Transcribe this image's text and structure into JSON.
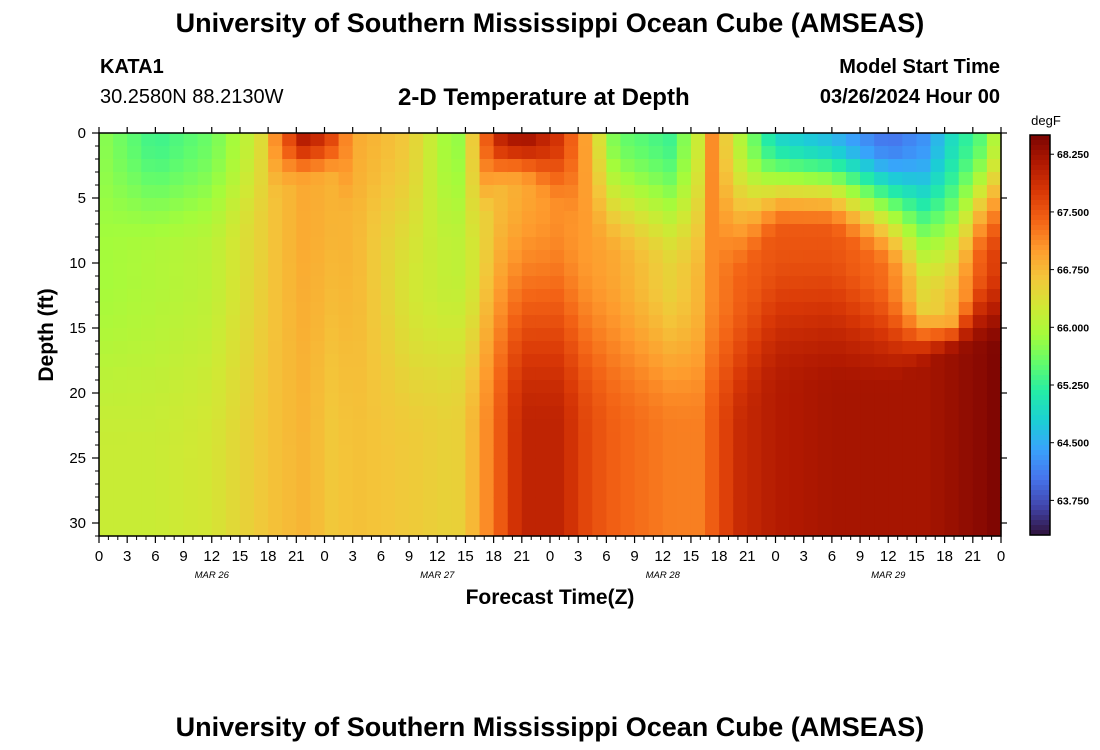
{
  "header": {
    "title": "University of Southern Mississippi Ocean Cube (AMSEAS)",
    "station_id": "KATA1",
    "coordinates": "30.2580N  88.2130W",
    "plot_title": "2-D Temperature at Depth",
    "model_label": "Model Start Time",
    "model_time": "03/26/2024 Hour 00"
  },
  "footer": {
    "title": "University of Southern Mississippi Ocean Cube (AMSEAS)"
  },
  "chart_data": {
    "type": "heatmap",
    "xlabel": "Forecast Time(Z)",
    "ylabel": "Depth (ft)",
    "x_hours": [
      0,
      96
    ],
    "x_step_hours": 1.5,
    "xtick_labels": [
      "0",
      "3",
      "6",
      "9",
      "12",
      "15",
      "18",
      "21",
      "0",
      "3",
      "6",
      "9",
      "12",
      "15",
      "18",
      "21",
      "0",
      "3",
      "6",
      "9",
      "12",
      "15",
      "18",
      "21",
      "0",
      "3",
      "6",
      "9",
      "12",
      "15",
      "18",
      "21",
      "0"
    ],
    "date_labels": [
      "MAR 26",
      "MAR 27",
      "MAR 28",
      "MAR 29"
    ],
    "ylim": [
      0,
      31
    ],
    "ytick_labels": [
      "0",
      "5",
      "10",
      "15",
      "20",
      "25",
      "30"
    ],
    "depth_step_ft": 1,
    "colorbar": {
      "unit": "degF",
      "range": [
        63.3,
        68.5
      ],
      "tick_labels": [
        "68.250",
        "67.500",
        "66.750",
        "66.000",
        "65.250",
        "64.500",
        "63.750"
      ],
      "colors": [
        "#30123b",
        "#4145ab",
        "#4675ed",
        "#39a2fc",
        "#1bcfd4",
        "#24eca6",
        "#61fc6c",
        "#a4fc3b",
        "#d1e834",
        "#f3c63a",
        "#fe9b2d",
        "#f36315",
        "#d93806",
        "#b11901",
        "#7a0402"
      ]
    },
    "profiles": [
      {
        "hour": 0,
        "top": 65.8,
        "mid": 65.9,
        "bot": 66.2,
        "z1": 10,
        "z2": 25
      },
      {
        "hour": 6,
        "top": 65.3,
        "mid": 66.0,
        "bot": 66.2,
        "z1": 10,
        "z2": 25
      },
      {
        "hour": 12,
        "top": 65.6,
        "mid": 66.1,
        "bot": 66.3,
        "z1": 10,
        "z2": 25
      },
      {
        "hour": 17,
        "top": 66.3,
        "mid": 66.5,
        "bot": 66.6,
        "z1": 8,
        "z2": 25
      },
      {
        "hour": 19,
        "top": 67.2,
        "mid": 66.7,
        "bot": 66.7,
        "z1": 5,
        "z2": 25
      },
      {
        "hour": 22,
        "top": 68.2,
        "mid": 66.9,
        "bot": 66.8,
        "z1": 4,
        "z2": 25
      },
      {
        "hour": 25,
        "top": 67.6,
        "mid": 66.8,
        "bot": 66.6,
        "z1": 4,
        "z2": 25
      },
      {
        "hour": 27,
        "top": 66.9,
        "mid": 66.8,
        "bot": 66.7,
        "z1": 8,
        "z2": 25
      },
      {
        "hour": 33,
        "top": 66.6,
        "mid": 66.3,
        "bot": 66.6,
        "z1": 12,
        "z2": 24
      },
      {
        "hour": 38,
        "top": 65.7,
        "mid": 66.1,
        "bot": 66.5,
        "z1": 10,
        "z2": 23
      },
      {
        "hour": 40,
        "top": 66.7,
        "mid": 66.3,
        "bot": 66.8,
        "z1": 10,
        "z2": 23
      },
      {
        "hour": 42,
        "top": 67.9,
        "mid": 66.7,
        "bot": 67.3,
        "z1": 5,
        "z2": 23
      },
      {
        "hour": 45,
        "top": 68.3,
        "mid": 66.9,
        "bot": 68.0,
        "z1": 4,
        "z2": 23
      },
      {
        "hour": 49,
        "top": 67.8,
        "mid": 67.1,
        "bot": 68.0,
        "z1": 6,
        "z2": 23
      },
      {
        "hour": 52,
        "top": 66.9,
        "mid": 67.0,
        "bot": 67.6,
        "z1": 9,
        "z2": 23
      },
      {
        "hour": 55,
        "top": 65.6,
        "mid": 66.9,
        "bot": 67.4,
        "z1": 10,
        "z2": 23
      },
      {
        "hour": 61,
        "top": 65.3,
        "mid": 66.5,
        "bot": 67.2,
        "z1": 11,
        "z2": 23
      },
      {
        "hour": 64,
        "top": 66.3,
        "mid": 66.8,
        "bot": 67.2,
        "z1": 12,
        "z2": 23
      },
      {
        "hour": 65,
        "top": 67.2,
        "mid": 67.1,
        "bot": 67.4,
        "z1": 12,
        "z2": 23
      },
      {
        "hour": 68,
        "top": 66.1,
        "mid": 67.4,
        "bot": 67.9,
        "z1": 12,
        "z2": 23
      },
      {
        "hour": 72,
        "top": 64.9,
        "mid": 67.5,
        "bot": 68.1,
        "z1": 8,
        "z2": 20
      },
      {
        "hour": 78,
        "top": 64.6,
        "mid": 67.5,
        "bot": 68.2,
        "z1": 8,
        "z2": 20
      },
      {
        "hour": 84,
        "top": 64.0,
        "mid": 67.3,
        "bot": 68.2,
        "z1": 11,
        "z2": 20
      },
      {
        "hour": 88,
        "top": 64.3,
        "mid": 66.4,
        "bot": 68.2,
        "z1": 13,
        "z2": 18
      },
      {
        "hour": 91,
        "top": 65.0,
        "mid": 66.8,
        "bot": 68.3,
        "z1": 14,
        "z2": 17
      },
      {
        "hour": 94,
        "top": 65.5,
        "mid": 67.5,
        "bot": 68.4,
        "z1": 10,
        "z2": 17
      },
      {
        "hour": 96,
        "top": 66.3,
        "mid": 67.8,
        "bot": 68.5,
        "z1": 10,
        "z2": 17
      }
    ]
  }
}
